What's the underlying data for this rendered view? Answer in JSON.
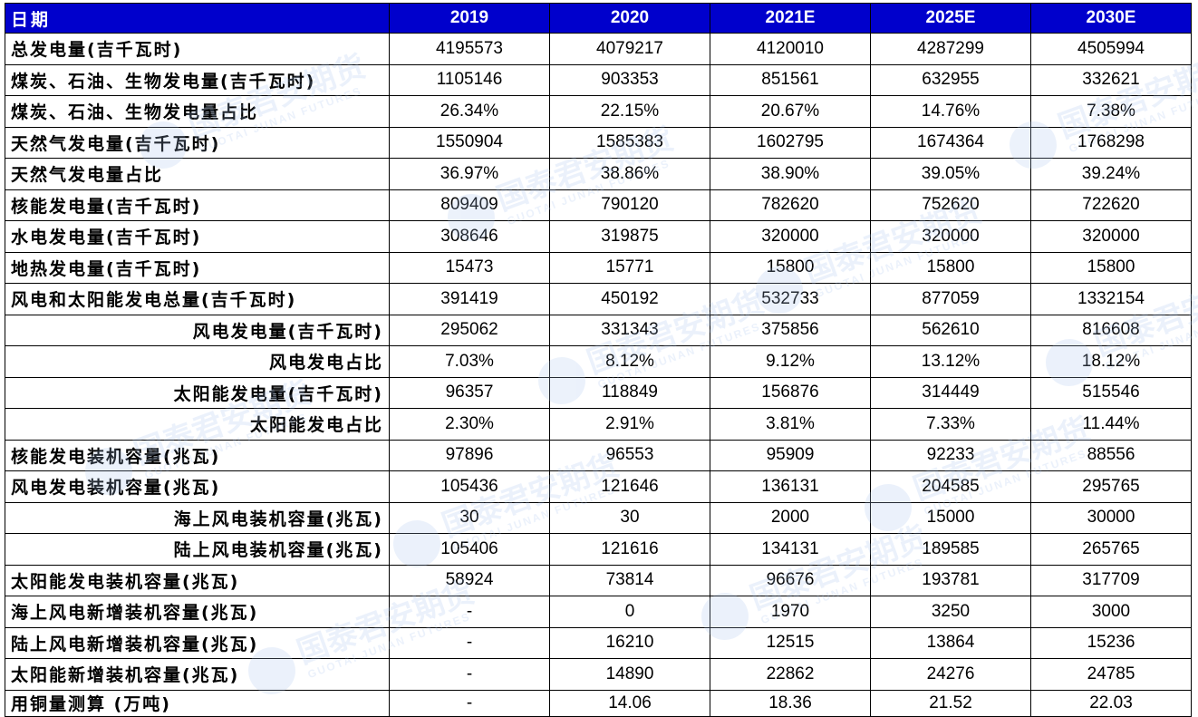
{
  "table": {
    "headers": [
      "日期",
      "2019",
      "2020",
      "2021E",
      "2025E",
      "2030E"
    ],
    "rows": [
      {
        "label": "总发电量(吉千瓦时)",
        "values": [
          "4195573",
          "4079217",
          "4120010",
          "4287299",
          "4505994"
        ]
      },
      {
        "label": "煤炭、石油、生物发电量(吉千瓦时)",
        "values": [
          "1105146",
          "903353",
          "851561",
          "632955",
          "332621"
        ]
      },
      {
        "label": "煤炭、石油、生物发电量占比",
        "values": [
          "26.34%",
          "22.15%",
          "20.67%",
          "14.76%",
          "7.38%"
        ]
      },
      {
        "label": "天然气发电量(吉千瓦时)",
        "values": [
          "1550904",
          "1585383",
          "1602795",
          "1674364",
          "1768298"
        ]
      },
      {
        "label": "天然气发电量占比",
        "values": [
          "36.97%",
          "38.86%",
          "38.90%",
          "39.05%",
          "39.24%"
        ]
      },
      {
        "label": "核能发电量(吉千瓦时)",
        "values": [
          "809409",
          "790120",
          "782620",
          "752620",
          "722620"
        ]
      },
      {
        "label": "水电发电量(吉千瓦时)",
        "values": [
          "308646",
          "319875",
          "320000",
          "320000",
          "320000"
        ]
      },
      {
        "label": "地热发电量(吉千瓦时)",
        "values": [
          "15473",
          "15771",
          "15800",
          "15800",
          "15800"
        ]
      },
      {
        "label": "风电和太阳能发电总量(吉千瓦时)",
        "values": [
          "391419",
          "450192",
          "532733",
          "877059",
          "1332154"
        ]
      },
      {
        "label": "风电发电量(吉千瓦时)",
        "values": [
          "295062",
          "331343",
          "375856",
          "562610",
          "816608"
        ]
      },
      {
        "label": "风电发电占比",
        "values": [
          "7.03%",
          "8.12%",
          "9.12%",
          "13.12%",
          "18.12%"
        ]
      },
      {
        "label": "太阳能发电量(吉千瓦时)",
        "values": [
          "96357",
          "118849",
          "156876",
          "314449",
          "515546"
        ]
      },
      {
        "label": "太阳能发电占比",
        "values": [
          "2.30%",
          "2.91%",
          "3.81%",
          "7.33%",
          "11.44%"
        ]
      },
      {
        "label": "核能发电装机容量(兆瓦)",
        "values": [
          "97896",
          "96553",
          "95909",
          "92233",
          "88556"
        ]
      },
      {
        "label": "风电发电装机容量(兆瓦)",
        "values": [
          "105436",
          "121646",
          "136131",
          "204585",
          "295765"
        ]
      },
      {
        "label": "海上风电装机容量(兆瓦)",
        "values": [
          "30",
          "30",
          "2000",
          "15000",
          "30000"
        ]
      },
      {
        "label": "陆上风电装机容量(兆瓦)",
        "values": [
          "105406",
          "121616",
          "134131",
          "189585",
          "265765"
        ]
      },
      {
        "label": "太阳能发电装机容量(兆瓦)",
        "values": [
          "58924",
          "73814",
          "96676",
          "193781",
          "317709"
        ]
      },
      {
        "label": "海上风电新增装机容量(兆瓦)",
        "values": [
          "-",
          "0",
          "1970",
          "3250",
          "3000"
        ]
      },
      {
        "label": "陆上风电新增装机容量(兆瓦)",
        "values": [
          "-",
          "16210",
          "12515",
          "13864",
          "15236"
        ]
      },
      {
        "label": "太阳能新增装机容量(兆瓦)",
        "values": [
          "-",
          "14890",
          "22862",
          "24276",
          "24785"
        ]
      },
      {
        "label": "用铜量测算 (万吨)",
        "values": [
          "-",
          "14.06",
          "18.36",
          "21.52",
          "22.03"
        ]
      }
    ]
  },
  "watermark": {
    "brand_cn": "国泰君安期货",
    "brand_en": "GUOTAI JUNAN FUTURES",
    "logo_color": "#a9c4ee"
  },
  "colors": {
    "header_bg": "#0000cc",
    "header_text": "#ffffff",
    "border": "#000000"
  }
}
